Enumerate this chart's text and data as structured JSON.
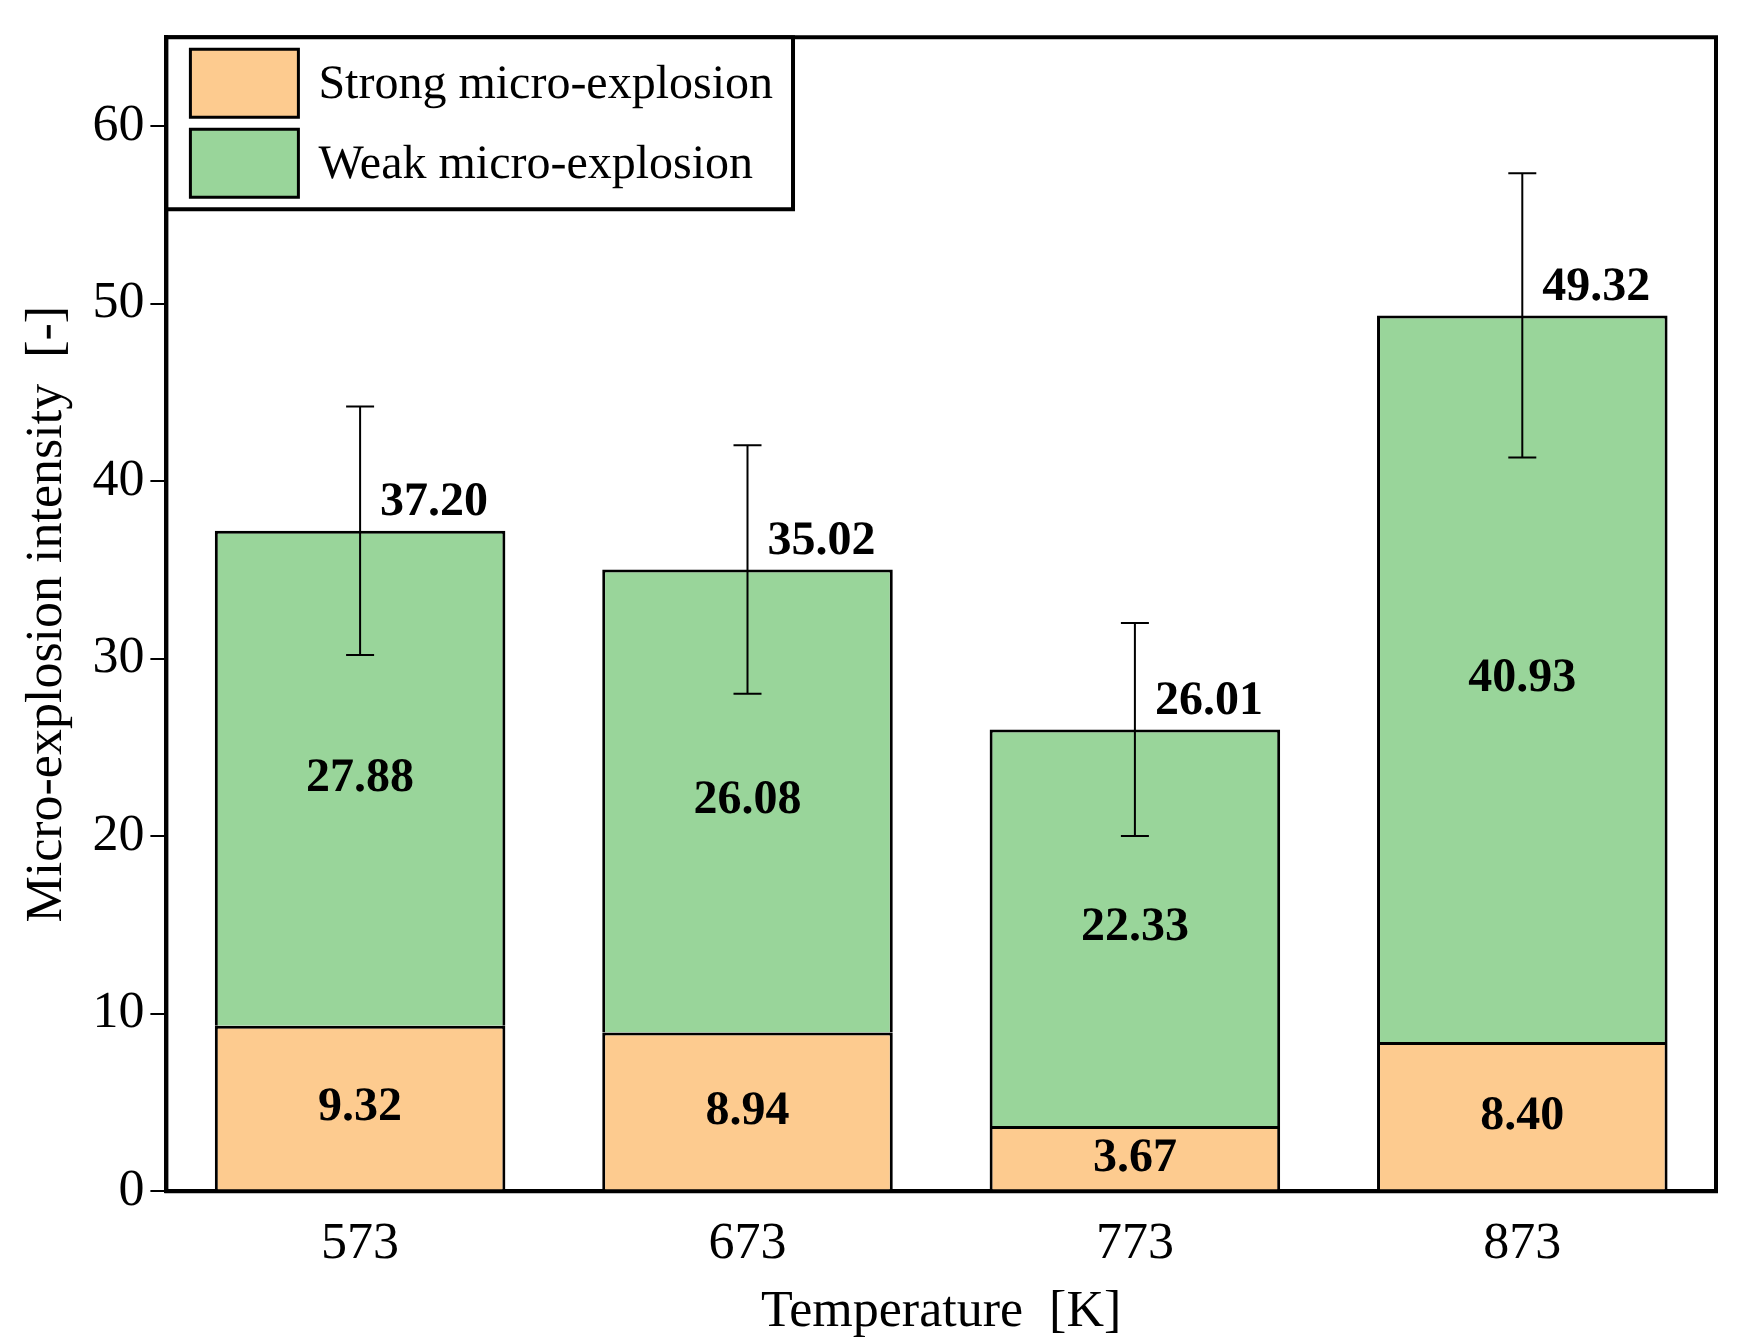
{
  "chart_data": {
    "type": "bar",
    "stacked": true,
    "xlabel": "Temperature  [K]",
    "ylabel": "Micro-explosion intensity  [-]",
    "categories": [
      "573",
      "673",
      "773",
      "873"
    ],
    "series": [
      {
        "name": "Strong micro-explosion",
        "color": "#fdcb8f",
        "values": [
          9.32,
          8.94,
          3.67,
          8.4
        ],
        "value_labels": [
          "9.32",
          "8.94",
          "3.67",
          "8.40"
        ]
      },
      {
        "name": "Weak micro-explosion",
        "color": "#99d59a",
        "values": [
          27.88,
          26.08,
          22.33,
          40.93
        ],
        "value_labels": [
          "27.88",
          "26.08",
          "22.33",
          "40.93"
        ],
        "errors": [
          7,
          7,
          6,
          8
        ]
      }
    ],
    "totals": [
      "37.20",
      "35.02",
      "26.01",
      "49.32"
    ],
    "ylim": [
      0,
      65
    ],
    "yticks": [
      0,
      10,
      20,
      30,
      40,
      50,
      60
    ],
    "grid": false,
    "legend": "top left"
  }
}
